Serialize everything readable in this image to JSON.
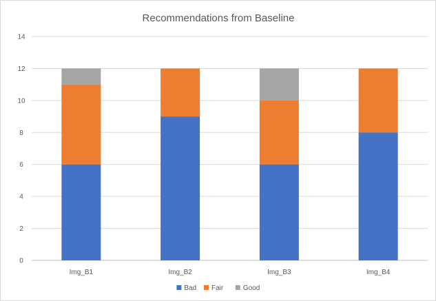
{
  "chart_data": {
    "type": "bar",
    "stacked": true,
    "title": "Recommendations from Baseline",
    "xlabel": "",
    "ylabel": "",
    "categories": [
      "Img_B1",
      "Img_B2",
      "Img_B3",
      "Img_B4"
    ],
    "series": [
      {
        "name": "Bad",
        "values": [
          6,
          9,
          6,
          8
        ],
        "color": "#4472c4"
      },
      {
        "name": "Fair",
        "values": [
          5,
          3,
          4,
          4
        ],
        "color": "#ed7d31"
      },
      {
        "name": "Good",
        "values": [
          1,
          0,
          2,
          0
        ],
        "color": "#a5a5a5"
      }
    ],
    "ylim": [
      0,
      14
    ],
    "yticks": [
      0,
      2,
      4,
      6,
      8,
      10,
      12,
      14
    ],
    "grid": true,
    "legend_position": "bottom"
  }
}
